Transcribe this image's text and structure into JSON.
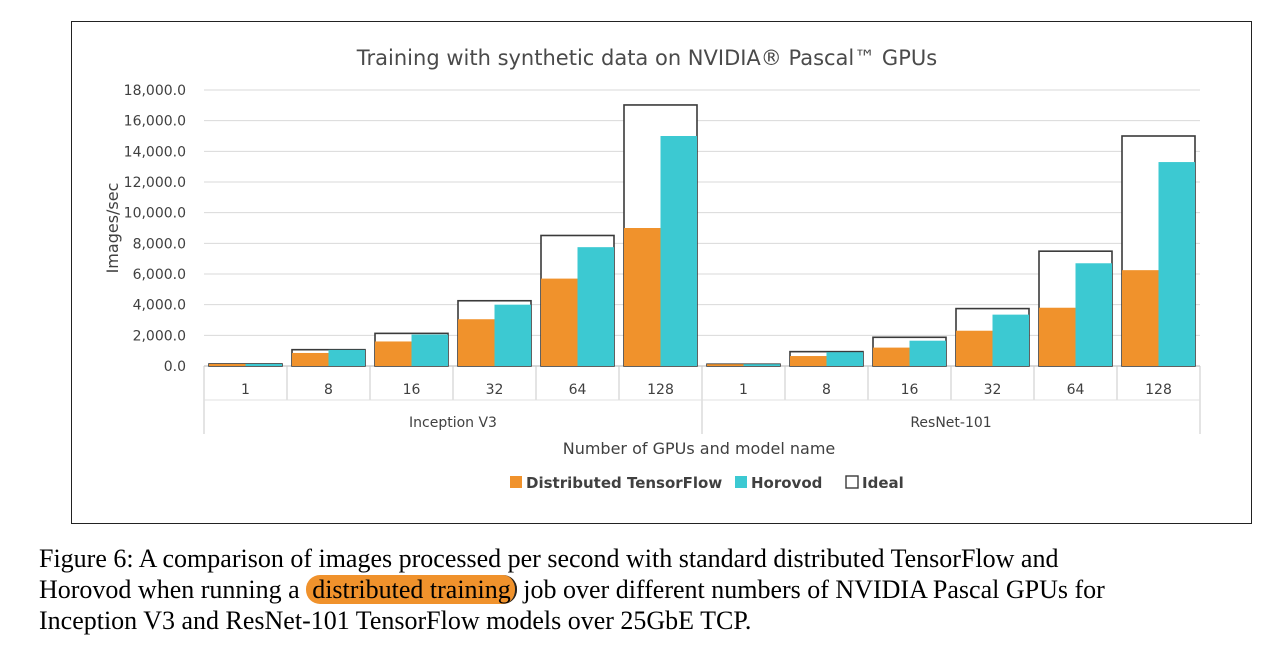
{
  "chart_data": {
    "type": "bar",
    "title": "Training with synthetic data on NVIDIA® Pascal™ GPUs",
    "xlabel": "Number of GPUs and model name",
    "ylabel": "Images/sec",
    "ylim": [
      0,
      18000
    ],
    "y_ticks": [
      "0.0",
      "2,000.0",
      "4,000.0",
      "6,000.0",
      "8,000.0",
      "10,000.0",
      "12,000.0",
      "14,000.0",
      "16,000.0",
      "18,000.0"
    ],
    "grid": true,
    "legend": "bottom",
    "groups": [
      {
        "name": "Inception V3",
        "categories": [
          "1",
          "8",
          "16",
          "32",
          "64",
          "128"
        ]
      },
      {
        "name": "ResNet-101",
        "categories": [
          "1",
          "8",
          "16",
          "32",
          "64",
          "128"
        ]
      }
    ],
    "series": [
      {
        "name": "Distributed TensorFlow",
        "color": "#f0922c",
        "values": [
          133,
          850,
          1600,
          3050,
          5700,
          9000,
          117,
          650,
          1200,
          2300,
          3800,
          6250
        ]
      },
      {
        "name": "Horovod",
        "color": "#3cc9d2",
        "values": [
          133,
          1050,
          2050,
          4000,
          7750,
          15000,
          117,
          900,
          1650,
          3350,
          6700,
          13300
        ]
      },
      {
        "name": "Ideal",
        "color": "#ffffff",
        "values": [
          133,
          1064,
          2128,
          4256,
          8512,
          17024,
          117,
          936,
          1872,
          3744,
          7488,
          15000
        ]
      }
    ]
  },
  "caption": {
    "line1": "Figure 6: A comparison of images processed per second with standard distributed TensorFlow and",
    "line2_pre": "Horovod when running a ",
    "line2_highlight": "distributed training",
    "line2_post": " job over different numbers of NVIDIA Pascal GPUs for",
    "line3": "Inception V3 and ResNet-101 TensorFlow models over 25GbE TCP."
  }
}
